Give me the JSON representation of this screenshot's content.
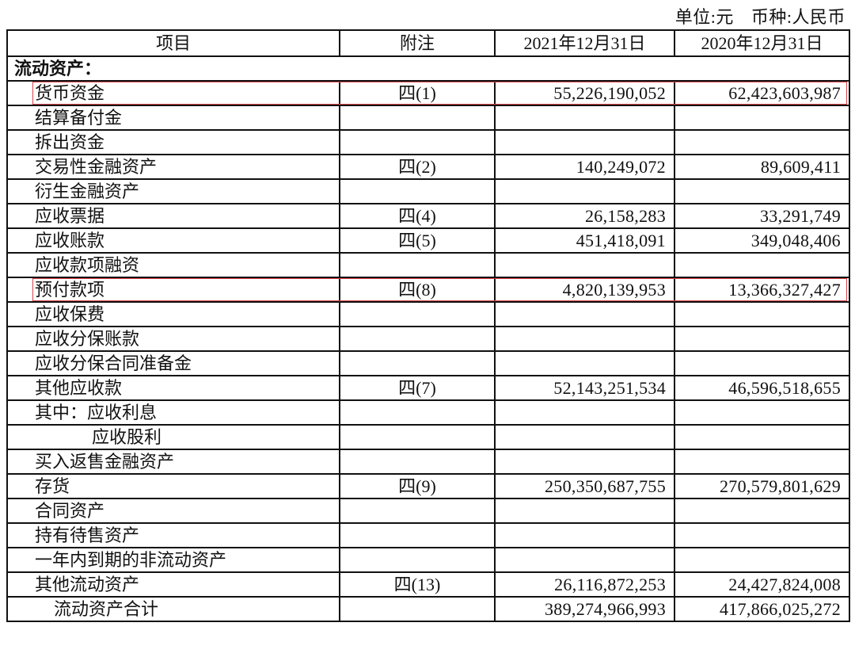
{
  "unit_line": {
    "unit": "单位:元",
    "currency": "币种:人民币"
  },
  "headers": [
    "项目",
    "附注",
    "2021年12月31日",
    "2020年12月31日"
  ],
  "section": "流动资产：",
  "rows": [
    {
      "item": "货币资金",
      "note": "四(1)",
      "y2021": "55,226,190,052",
      "y2020": "62,423,603,987",
      "indent": 1,
      "highlighted": true
    },
    {
      "item": "结算备付金",
      "note": "",
      "y2021": "",
      "y2020": "",
      "indent": 1
    },
    {
      "item": "拆出资金",
      "note": "",
      "y2021": "",
      "y2020": "",
      "indent": 1
    },
    {
      "item": "交易性金融资产",
      "note": "四(2)",
      "y2021": "140,249,072",
      "y2020": "89,609,411",
      "indent": 1
    },
    {
      "item": "衍生金融资产",
      "note": "",
      "y2021": "",
      "y2020": "",
      "indent": 1
    },
    {
      "item": "应收票据",
      "note": "四(4)",
      "y2021": "26,158,283",
      "y2020": "33,291,749",
      "indent": 1
    },
    {
      "item": "应收账款",
      "note": "四(5)",
      "y2021": "451,418,091",
      "y2020": "349,048,406",
      "indent": 1
    },
    {
      "item": "应收款项融资",
      "note": "",
      "y2021": "",
      "y2020": "",
      "indent": 1
    },
    {
      "item": "预付款项",
      "note": "四(8)",
      "y2021": "4,820,139,953",
      "y2020": "13,366,327,427",
      "indent": 1,
      "highlighted": true
    },
    {
      "item": "应收保费",
      "note": "",
      "y2021": "",
      "y2020": "",
      "indent": 1
    },
    {
      "item": "应收分保账款",
      "note": "",
      "y2021": "",
      "y2020": "",
      "indent": 1
    },
    {
      "item": "应收分保合同准备金",
      "note": "",
      "y2021": "",
      "y2020": "",
      "indent": 1
    },
    {
      "item": "其他应收款",
      "note": "四(7)",
      "y2021": "52,143,251,534",
      "y2020": "46,596,518,655",
      "indent": 1
    },
    {
      "item": "其中：应收利息",
      "note": "",
      "y2021": "",
      "y2020": "",
      "indent": 1
    },
    {
      "item": "应收股利",
      "note": "",
      "y2021": "",
      "y2020": "",
      "indent": 3
    },
    {
      "item": "买入返售金融资产",
      "note": "",
      "y2021": "",
      "y2020": "",
      "indent": 1
    },
    {
      "item": "存货",
      "note": "四(9)",
      "y2021": "250,350,687,755",
      "y2020": "270,579,801,629",
      "indent": 1
    },
    {
      "item": "合同资产",
      "note": "",
      "y2021": "",
      "y2020": "",
      "indent": 1
    },
    {
      "item": "持有待售资产",
      "note": "",
      "y2021": "",
      "y2020": "",
      "indent": 1
    },
    {
      "item": "一年内到期的非流动资产",
      "note": "",
      "y2021": "",
      "y2020": "",
      "indent": 1
    },
    {
      "item": "其他流动资产",
      "note": "四(13)",
      "y2021": "26,116,872,253",
      "y2020": "24,427,824,008",
      "indent": 1
    },
    {
      "item": "流动资产合计",
      "note": "",
      "y2021": "389,274,966,993",
      "y2020": "417,866,025,272",
      "indent": 2
    }
  ],
  "colors": {
    "highlight_border": "#d9434a",
    "grid": "#111111"
  }
}
